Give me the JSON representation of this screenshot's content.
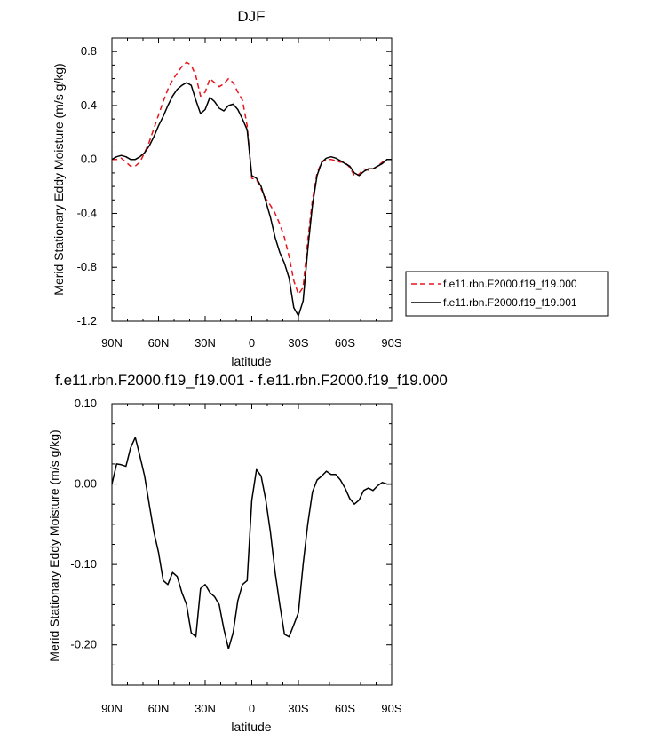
{
  "chart_data": [
    {
      "type": "line",
      "title": "DJF",
      "xlabel": "latitude",
      "ylabel": "Merid Stationary Eddy Moisture (m/s g/kg)",
      "x_range": [
        90,
        -90
      ],
      "x_ticks": [
        {
          "value": 90,
          "label": "90N"
        },
        {
          "value": 60,
          "label": "60N"
        },
        {
          "value": 30,
          "label": "30N"
        },
        {
          "value": 0,
          "label": "0"
        },
        {
          "value": -30,
          "label": "30S"
        },
        {
          "value": -60,
          "label": "60S"
        },
        {
          "value": -90,
          "label": "90S"
        }
      ],
      "ylim": [
        -1.2,
        0.9
      ],
      "y_ticks": [
        {
          "value": 0.8,
          "label": "0.8"
        },
        {
          "value": 0.4,
          "label": "0.4"
        },
        {
          "value": 0.0,
          "label": "0.0"
        },
        {
          "value": -0.4,
          "label": "-0.4"
        },
        {
          "value": -0.8,
          "label": "-0.8"
        },
        {
          "value": -1.2,
          "label": "-1.2"
        }
      ],
      "grid": false,
      "legend_position": "right",
      "series": [
        {
          "name": "f.e11.rbn.F2000.f19_f19.000",
          "color": "#e8151b",
          "dashed": true,
          "x": [
            90,
            87,
            84,
            81,
            78,
            75,
            72,
            69,
            66,
            63,
            60,
            57,
            54,
            51,
            48,
            45,
            42,
            39,
            36,
            33,
            30,
            27,
            24,
            21,
            18,
            15,
            12,
            9,
            6,
            3,
            0,
            -3,
            -6,
            -9,
            -12,
            -15,
            -18,
            -21,
            -24,
            -27,
            -30,
            -33,
            -36,
            -39,
            -42,
            -45,
            -48,
            -51,
            -54,
            -57,
            -60,
            -63,
            -66,
            -69,
            -72,
            -75,
            -78,
            -81,
            -84,
            -87,
            -90
          ],
          "y": [
            0.0,
            0.0,
            0.01,
            -0.02,
            -0.05,
            -0.05,
            -0.02,
            0.05,
            0.13,
            0.23,
            0.33,
            0.43,
            0.52,
            0.59,
            0.64,
            0.69,
            0.72,
            0.7,
            0.62,
            0.47,
            0.5,
            0.6,
            0.57,
            0.54,
            0.56,
            0.6,
            0.57,
            0.5,
            0.44,
            0.25,
            -0.14,
            -0.15,
            -0.22,
            -0.29,
            -0.34,
            -0.4,
            -0.48,
            -0.58,
            -0.72,
            -0.9,
            -1.0,
            -0.95,
            -0.6,
            -0.3,
            -0.1,
            -0.02,
            0.0,
            0.0,
            -0.01,
            -0.02,
            -0.02,
            -0.06,
            -0.12,
            -0.11,
            -0.07,
            -0.08,
            -0.07,
            -0.05,
            -0.02,
            0.0,
            0.0
          ]
        },
        {
          "name": "f.e11.rbn.F2000.f19_f19.001",
          "color": "#000000",
          "dashed": false,
          "x": [
            90,
            87,
            84,
            81,
            78,
            75,
            72,
            69,
            66,
            63,
            60,
            57,
            54,
            51,
            48,
            45,
            42,
            39,
            36,
            33,
            30,
            27,
            24,
            21,
            18,
            15,
            12,
            9,
            6,
            3,
            0,
            -3,
            -6,
            -9,
            -12,
            -15,
            -18,
            -21,
            -24,
            -27,
            -30,
            -33,
            -36,
            -39,
            -42,
            -45,
            -48,
            -51,
            -54,
            -57,
            -60,
            -63,
            -66,
            -69,
            -72,
            -75,
            -78,
            -81,
            -84,
            -87,
            -90
          ],
          "y": [
            0.0,
            0.02,
            0.03,
            0.02,
            0.0,
            0.0,
            0.02,
            0.05,
            0.1,
            0.17,
            0.25,
            0.32,
            0.4,
            0.47,
            0.52,
            0.55,
            0.57,
            0.55,
            0.44,
            0.34,
            0.37,
            0.46,
            0.43,
            0.38,
            0.36,
            0.4,
            0.41,
            0.37,
            0.3,
            0.22,
            -0.12,
            -0.14,
            -0.2,
            -0.31,
            -0.43,
            -0.58,
            -0.69,
            -0.77,
            -0.88,
            -1.1,
            -1.16,
            -1.05,
            -0.67,
            -0.34,
            -0.12,
            -0.02,
            0.01,
            0.02,
            0.01,
            -0.01,
            -0.03,
            -0.05,
            -0.1,
            -0.12,
            -0.09,
            -0.07,
            -0.07,
            -0.05,
            -0.03,
            0.0,
            0.0
          ]
        }
      ]
    },
    {
      "type": "line",
      "title": "f.e11.rbn.F2000.f19_f19.001 - f.e11.rbn.F2000.f19_f19.000",
      "xlabel": "latitude",
      "ylabel": "Merid Stationary Eddy Moisture (m/s g/kg)",
      "x_range": [
        90,
        -90
      ],
      "x_ticks": [
        {
          "value": 90,
          "label": "90N"
        },
        {
          "value": 60,
          "label": "60N"
        },
        {
          "value": 30,
          "label": "30N"
        },
        {
          "value": 0,
          "label": "0"
        },
        {
          "value": -30,
          "label": "30S"
        },
        {
          "value": -60,
          "label": "60S"
        },
        {
          "value": -90,
          "label": "90S"
        }
      ],
      "ylim": [
        -0.25,
        0.1
      ],
      "y_ticks": [
        {
          "value": 0.1,
          "label": "0.10"
        },
        {
          "value": 0.0,
          "label": "0.00"
        },
        {
          "value": -0.1,
          "label": "-0.10"
        },
        {
          "value": -0.2,
          "label": "-0.20"
        }
      ],
      "grid": false,
      "series": [
        {
          "color": "#000000",
          "dashed": false,
          "x": [
            90,
            87,
            84,
            81,
            78,
            75,
            72,
            69,
            66,
            63,
            60,
            57,
            54,
            51,
            48,
            45,
            42,
            39,
            36,
            33,
            30,
            27,
            24,
            21,
            18,
            15,
            12,
            9,
            6,
            3,
            0,
            -3,
            -6,
            -9,
            -12,
            -15,
            -18,
            -21,
            -24,
            -27,
            -30,
            -33,
            -36,
            -39,
            -42,
            -45,
            -48,
            -51,
            -54,
            -57,
            -60,
            -63,
            -66,
            -69,
            -72,
            -75,
            -78,
            -81,
            -84,
            -87,
            -90
          ],
          "y": [
            0.0,
            0.025,
            0.024,
            0.022,
            0.045,
            0.058,
            0.035,
            0.01,
            -0.025,
            -0.06,
            -0.085,
            -0.12,
            -0.125,
            -0.11,
            -0.115,
            -0.135,
            -0.15,
            -0.185,
            -0.19,
            -0.13,
            -0.125,
            -0.135,
            -0.14,
            -0.15,
            -0.18,
            -0.205,
            -0.185,
            -0.145,
            -0.125,
            -0.12,
            -0.02,
            0.018,
            0.01,
            -0.02,
            -0.06,
            -0.11,
            -0.15,
            -0.187,
            -0.19,
            -0.175,
            -0.16,
            -0.1,
            -0.05,
            -0.01,
            0.005,
            0.01,
            0.016,
            0.012,
            0.012,
            0.005,
            -0.005,
            -0.018,
            -0.025,
            -0.02,
            -0.008,
            -0.005,
            -0.008,
            -0.002,
            0.002,
            0.0,
            0.0
          ]
        }
      ]
    }
  ]
}
